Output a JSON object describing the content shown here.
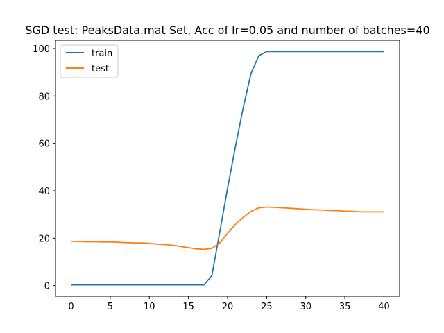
{
  "chart_data": {
    "type": "line",
    "title": "SGD test: PeaksData.mat Set, Acc of lr=0.05 and number of batches=40",
    "xlabel": "",
    "ylabel": "",
    "xlim": [
      -2,
      42
    ],
    "ylim": [
      -4.5,
      103.5
    ],
    "xticks": [
      0,
      5,
      10,
      15,
      20,
      25,
      30,
      35,
      40
    ],
    "yticks": [
      0,
      20,
      40,
      60,
      80,
      100
    ],
    "grid": false,
    "legend_position": "upper-left",
    "x": [
      0,
      1,
      2,
      3,
      4,
      5,
      6,
      7,
      8,
      9,
      10,
      11,
      12,
      13,
      14,
      15,
      16,
      17,
      18,
      19,
      20,
      21,
      22,
      23,
      24,
      25,
      26,
      27,
      28,
      29,
      30,
      31,
      32,
      33,
      34,
      35,
      36,
      37,
      38,
      39,
      40
    ],
    "series": [
      {
        "name": "train",
        "color": "#1f77b4",
        "values": [
          0.3,
          0.3,
          0.3,
          0.3,
          0.3,
          0.3,
          0.3,
          0.3,
          0.3,
          0.3,
          0.3,
          0.3,
          0.3,
          0.3,
          0.3,
          0.3,
          0.3,
          0.3,
          4.3,
          22.5,
          41.0,
          58.5,
          75.0,
          89.5,
          97.0,
          98.7,
          98.7,
          98.7,
          98.7,
          98.7,
          98.7,
          98.7,
          98.7,
          98.7,
          98.7,
          98.7,
          98.7,
          98.7,
          98.7,
          98.7,
          98.7
        ]
      },
      {
        "name": "test",
        "color": "#ff7f0e",
        "values": [
          18.7,
          18.6,
          18.5,
          18.5,
          18.4,
          18.4,
          18.3,
          18.1,
          18.0,
          18.0,
          17.8,
          17.5,
          17.3,
          17.0,
          16.5,
          16.0,
          15.5,
          15.3,
          15.7,
          18.0,
          22.0,
          25.8,
          28.8,
          31.3,
          32.8,
          33.1,
          33.0,
          32.8,
          32.6,
          32.4,
          32.2,
          32.0,
          31.9,
          31.7,
          31.6,
          31.4,
          31.3,
          31.1,
          31.1,
          31.1,
          31.1
        ]
      }
    ]
  }
}
